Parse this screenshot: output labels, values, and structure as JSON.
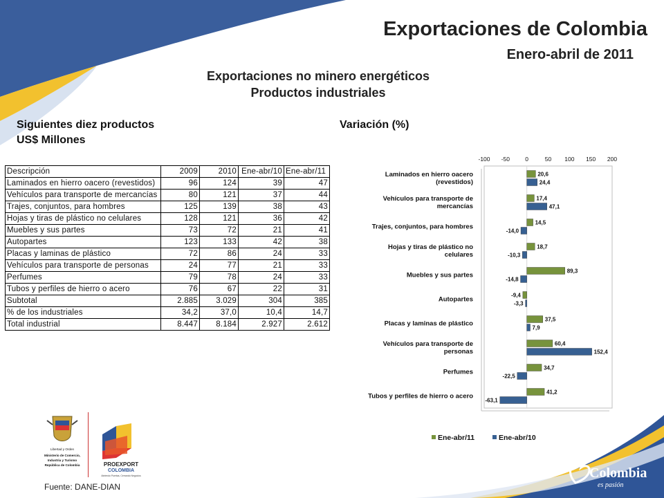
{
  "header": {
    "title": "Exportaciones de Colombia",
    "subtitle": "Enero-abril de 2011",
    "section_title_1": "Exportaciones no minero energéticos",
    "section_title_2": "Productos industriales"
  },
  "left": {
    "heading_1": "Siguientes diez productos",
    "heading_2": "US$ Millones"
  },
  "right": {
    "heading": "Variación (%)"
  },
  "table": {
    "headers": [
      "Descripción",
      "2009",
      "2010",
      "Ene-abr/10",
      "Ene-abr/11"
    ],
    "rows": [
      [
        "Laminados en hierro oacero (revestidos)",
        "96",
        "124",
        "39",
        "47"
      ],
      [
        "Vehículos para transporte de mercancías",
        "80",
        "121",
        "37",
        "44"
      ],
      [
        "Trajes, conjuntos, para hombres",
        "125",
        "139",
        "38",
        "43"
      ],
      [
        "Hojas y tiras de plástico no celulares",
        "128",
        "121",
        "36",
        "42"
      ],
      [
        "Muebles y sus partes",
        "73",
        "72",
        "21",
        "41"
      ],
      [
        "Autopartes",
        "123",
        "133",
        "42",
        "38"
      ],
      [
        "Placas y laminas de plástico",
        "72",
        "86",
        "24",
        "33"
      ],
      [
        "Vehículos para transporte de personas",
        "24",
        "77",
        "21",
        "33"
      ],
      [
        "Perfumes",
        "79",
        "78",
        "24",
        "33"
      ],
      [
        "Tubos y perfiles de hierro o acero",
        "76",
        "67",
        "22",
        "31"
      ],
      [
        "Subtotal",
        "2.885",
        "3.029",
        "304",
        "385"
      ],
      [
        "% de los industriales",
        "34,2",
        "37,0",
        "10,4",
        "14,7"
      ],
      [
        "Total industrial",
        "8.447",
        "8.184",
        "2.927",
        "2.612"
      ]
    ]
  },
  "chart_data": {
    "type": "bar",
    "orientation": "horizontal",
    "categories": [
      [
        "Laminados en hierro oacero",
        "(revestidos)"
      ],
      [
        "Vehículos para transporte de",
        "mercancías"
      ],
      [
        "Trajes, conjuntos, para hombres"
      ],
      [
        "Hojas y tiras de plástico no",
        "celulares"
      ],
      [
        "Muebles y sus partes"
      ],
      [
        "Autopartes"
      ],
      [
        "Placas y laminas de plástico"
      ],
      [
        "Vehículos para transporte de",
        "personas"
      ],
      [
        "Perfumes"
      ],
      [
        "Tubos y perfiles de hierro o acero"
      ]
    ],
    "series": [
      {
        "name": "Ene-abr/11",
        "color": "#77933c",
        "values": [
          20.6,
          17.4,
          14.5,
          18.7,
          89.3,
          -9.4,
          37.5,
          60.4,
          34.7,
          41.2
        ],
        "labels": [
          "20,6",
          "17,4",
          "14,5",
          "18,7",
          "89,3",
          "-9,4",
          "37,5",
          "60,4",
          "34,7",
          "41,2"
        ]
      },
      {
        "name": "Ene-abr/10",
        "color": "#376092",
        "values": [
          24.4,
          47.1,
          -14.0,
          -10.3,
          -14.8,
          -3.3,
          7.9,
          152.4,
          -22.5,
          -63.1
        ],
        "labels": [
          "24,4",
          "47,1",
          "-14,0",
          "-10,3",
          "-14,8",
          "-3,3",
          "7,9",
          "152,4",
          "-22,5",
          "-63,1"
        ]
      }
    ],
    "xlim": [
      -100,
      200
    ],
    "xticks": [
      -100,
      -50,
      0,
      50,
      100,
      150,
      200
    ],
    "xtick_labels": [
      "-100",
      "-50",
      "0",
      "50",
      "100",
      "150",
      "200"
    ],
    "legend_position": "bottom"
  },
  "footer": {
    "source": "Fuente: DANE-DIAN"
  },
  "logos": {
    "mincit_text": [
      "Libertad y Orden",
      "Ministerio de Comercio,",
      "Industria y Turismo",
      "República de Colombia"
    ],
    "proexport_text": [
      "PROEXPORT",
      "COLOMBIA",
      "Abriendo Puertas, Cerrando Negocios"
    ],
    "colombia_text": [
      "Colombia",
      "es pasión"
    ]
  },
  "colors": {
    "accent_blue": "#2f5597",
    "accent_yellow": "#f2c12e",
    "series_green": "#77933c",
    "series_blue": "#376092"
  }
}
